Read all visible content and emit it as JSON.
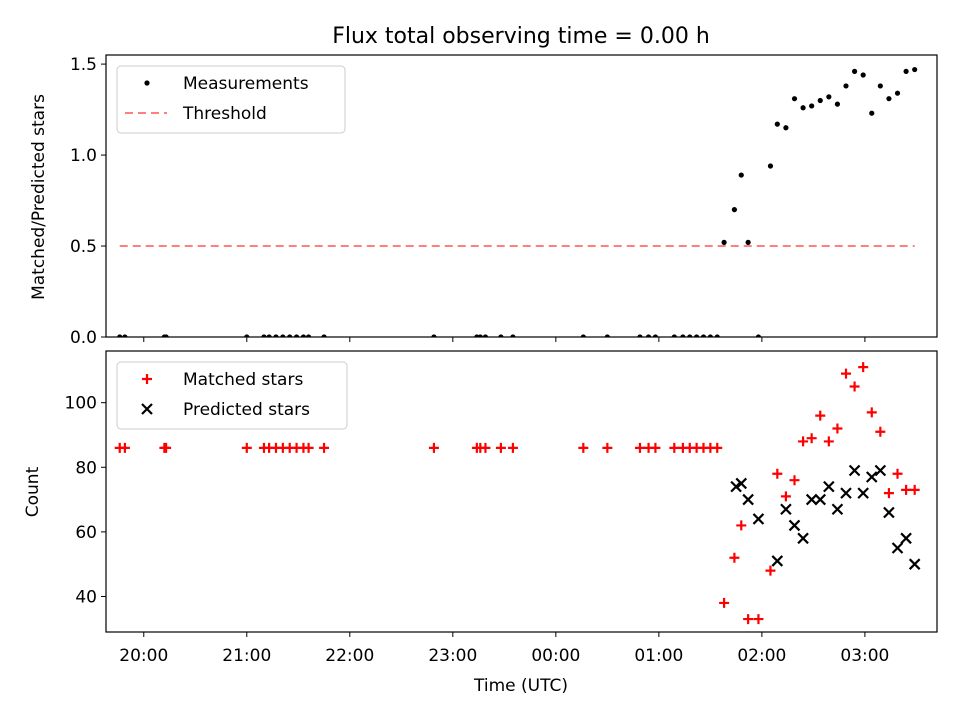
{
  "chart_data": [
    {
      "type": "scatter",
      "title": "Flux total observing time = 0.00 h",
      "ylabel": "Matched/Predicted stars",
      "xlabel": "",
      "ylim": [
        0,
        1.55
      ],
      "yticks": [
        0.0,
        0.5,
        1.0,
        1.5
      ],
      "ytick_labels": [
        "0.0",
        "0.5",
        "1.0",
        "1.5"
      ],
      "legend_position": "upper-left",
      "grid": false,
      "series": [
        {
          "name": "Measurements",
          "kind": "points",
          "color": "#000000",
          "x": [
            "19:46",
            "19:49",
            "20:12",
            "20:13",
            "21:00",
            "21:10",
            "21:13",
            "21:17",
            "21:21",
            "21:25",
            "21:29",
            "21:33",
            "21:36",
            "21:45",
            "22:49",
            "23:14",
            "23:16",
            "23:19",
            "23:28",
            "23:35",
            "00:16",
            "00:30",
            "00:49",
            "00:54",
            "00:58",
            "01:09",
            "01:14",
            "01:18",
            "01:22",
            "01:26",
            "01:30",
            "01:34",
            "01:38",
            "01:44",
            "01:48",
            "01:52",
            "01:58",
            "02:05",
            "02:09",
            "02:14",
            "02:19",
            "02:24",
            "02:29",
            "02:34",
            "02:39",
            "02:44",
            "02:49",
            "02:54",
            "02:59",
            "03:04",
            "03:09",
            "03:14",
            "03:19",
            "03:24",
            "03:29"
          ],
          "y": [
            0,
            0,
            0,
            0,
            0,
            0,
            0,
            0,
            0,
            0,
            0,
            0,
            0,
            0,
            0,
            0,
            0,
            0,
            0,
            0,
            0,
            0,
            0,
            0,
            0,
            0,
            0,
            0,
            0,
            0,
            0,
            0,
            0.52,
            0.7,
            0.89,
            0.52,
            0,
            0.94,
            1.17,
            1.15,
            1.31,
            1.26,
            1.27,
            1.3,
            1.32,
            1.28,
            1.38,
            1.46,
            1.44,
            1.23,
            1.38,
            1.31,
            1.34,
            1.46,
            1.47
          ]
        },
        {
          "name": "Threshold",
          "kind": "line",
          "style": "dashed",
          "color": "#ff7f7f",
          "x": [
            "19:46",
            "03:29"
          ],
          "y": [
            0.5,
            0.5
          ]
        }
      ]
    },
    {
      "type": "scatter",
      "title": "",
      "ylabel": "Count",
      "xlabel": "Time (UTC)",
      "ylim": [
        29,
        116
      ],
      "yticks": [
        40,
        60,
        80,
        100
      ],
      "ytick_labels": [
        "40",
        "60",
        "80",
        "100"
      ],
      "legend_position": "upper-left",
      "grid": false,
      "series": [
        {
          "name": "Matched stars",
          "kind": "plus",
          "color": "#ff0000",
          "x": [
            "19:46",
            "19:49",
            "20:12",
            "20:13",
            "21:00",
            "21:10",
            "21:13",
            "21:17",
            "21:21",
            "21:25",
            "21:29",
            "21:33",
            "21:36",
            "21:45",
            "22:49",
            "23:14",
            "23:16",
            "23:19",
            "23:28",
            "23:35",
            "00:16",
            "00:30",
            "00:49",
            "00:54",
            "00:58",
            "01:09",
            "01:14",
            "01:18",
            "01:22",
            "01:26",
            "01:30",
            "01:34",
            "01:38",
            "01:44",
            "01:48",
            "01:52",
            "01:58",
            "02:05",
            "02:09",
            "02:14",
            "02:19",
            "02:24",
            "02:29",
            "02:34",
            "02:39",
            "02:44",
            "02:49",
            "02:54",
            "02:59",
            "03:04",
            "03:09",
            "03:14",
            "03:19",
            "03:24",
            "03:29"
          ],
          "y": [
            86,
            86,
            86,
            86,
            86,
            86,
            86,
            86,
            86,
            86,
            86,
            86,
            86,
            86,
            86,
            86,
            86,
            86,
            86,
            86,
            86,
            86,
            86,
            86,
            86,
            86,
            86,
            86,
            86,
            86,
            86,
            86,
            38,
            52,
            62,
            33,
            33,
            48,
            78,
            71,
            76,
            88,
            89,
            96,
            88,
            92,
            109,
            105,
            111,
            97,
            91,
            72,
            78,
            73,
            73
          ]
        },
        {
          "name": "Predicted stars",
          "kind": "cross",
          "color": "#000000",
          "x": [
            "01:45",
            "01:48",
            "01:52",
            "01:58",
            "02:09",
            "02:14",
            "02:19",
            "02:24",
            "02:29",
            "02:34",
            "02:39",
            "02:44",
            "02:49",
            "02:54",
            "02:59",
            "03:04",
            "03:09",
            "03:14",
            "03:19",
            "03:24",
            "03:29"
          ],
          "y": [
            74,
            75,
            70,
            64,
            51,
            67,
            62,
            58,
            70,
            70,
            74,
            67,
            72,
            79,
            72,
            77,
            79,
            66,
            55,
            58,
            50
          ]
        }
      ]
    }
  ],
  "shared_x": {
    "range": [
      "19:38",
      "03:42"
    ],
    "ticks": [
      "20:00",
      "21:00",
      "22:00",
      "23:00",
      "00:00",
      "01:00",
      "02:00",
      "03:00"
    ],
    "tick_labels": [
      "20:00",
      "21:00",
      "22:00",
      "23:00",
      "00:00",
      "01:00",
      "02:00",
      "03:00"
    ]
  }
}
